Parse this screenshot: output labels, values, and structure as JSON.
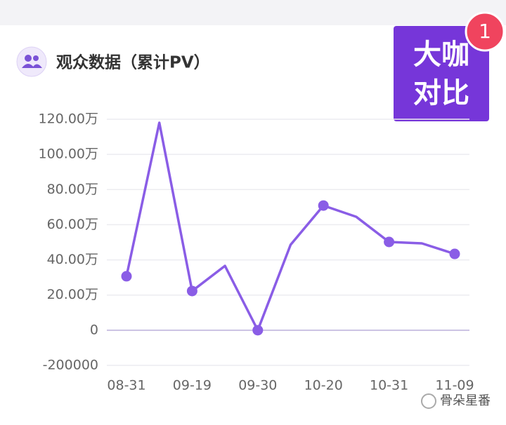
{
  "header": {
    "title": "观众数据（累计PV）"
  },
  "badge": {
    "line1": "大咖",
    "line2": "对比",
    "count": "1"
  },
  "watermark": "骨朵星番",
  "chart_data": {
    "type": "line",
    "categories": [
      "08-31",
      null,
      "09-19",
      null,
      "09-30",
      null,
      "10-20",
      null,
      "10-31",
      null,
      "11-09"
    ],
    "values": [
      307000,
      1180000,
      223000,
      366000,
      0,
      486000,
      709000,
      645000,
      502000,
      494000,
      434000
    ],
    "color": "#8a5de6",
    "ylim": [
      -200000,
      1200000
    ],
    "yticks": [
      -200000,
      0,
      {
        "value": 200000,
        "label": "20.00万"
      },
      {
        "value": 400000,
        "label": "40.00万"
      },
      {
        "value": 600000,
        "label": "60.00万"
      },
      {
        "value": 800000,
        "label": "80.00万"
      },
      {
        "value": 1000000,
        "label": "100.00万"
      },
      {
        "value": 1200000,
        "label": "120.00万"
      }
    ],
    "grid": true
  }
}
